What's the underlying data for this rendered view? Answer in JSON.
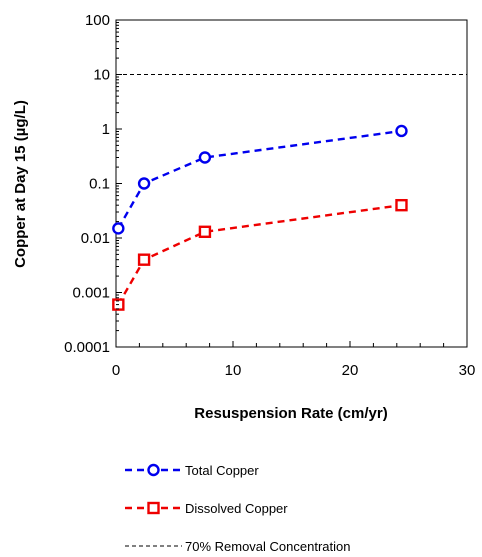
{
  "chart_data": {
    "type": "line",
    "title": "",
    "xlabel": "Resuspension Rate (cm/yr)",
    "ylabel": "Copper at Day 15 (µg/L)",
    "xlim": [
      0,
      30
    ],
    "ylim": [
      0.0001,
      100
    ],
    "yscale": "log",
    "x_ticks": [
      0,
      10,
      20,
      30
    ],
    "y_ticks": [
      {
        "value": 0.0001,
        "label": "0.0001"
      },
      {
        "value": 0.001,
        "label": "0.001"
      },
      {
        "value": 0.01,
        "label": "0.01"
      },
      {
        "value": 0.1,
        "label": "0.1"
      },
      {
        "value": 1,
        "label": "1"
      },
      {
        "value": 10,
        "label": "10"
      },
      {
        "value": 100,
        "label": "100"
      }
    ],
    "grid": false,
    "legend_position": "bottom",
    "series": [
      {
        "name": "Total Copper",
        "color": "#0000ee",
        "marker": "circle",
        "line": "dashed",
        "x": [
          0.2,
          2.4,
          7.6,
          24.4
        ],
        "y": [
          0.015,
          0.1,
          0.3,
          0.92
        ]
      },
      {
        "name": "Dissolved Copper",
        "color": "#ee0000",
        "marker": "square",
        "line": "dashed",
        "x": [
          0.2,
          2.4,
          7.6,
          24.4
        ],
        "y": [
          0.0006,
          0.004,
          0.013,
          0.04
        ]
      }
    ],
    "reference_lines": [
      {
        "name": "70% Removal Concentration",
        "y": 10,
        "color": "#000000",
        "line": "dashed"
      }
    ]
  }
}
